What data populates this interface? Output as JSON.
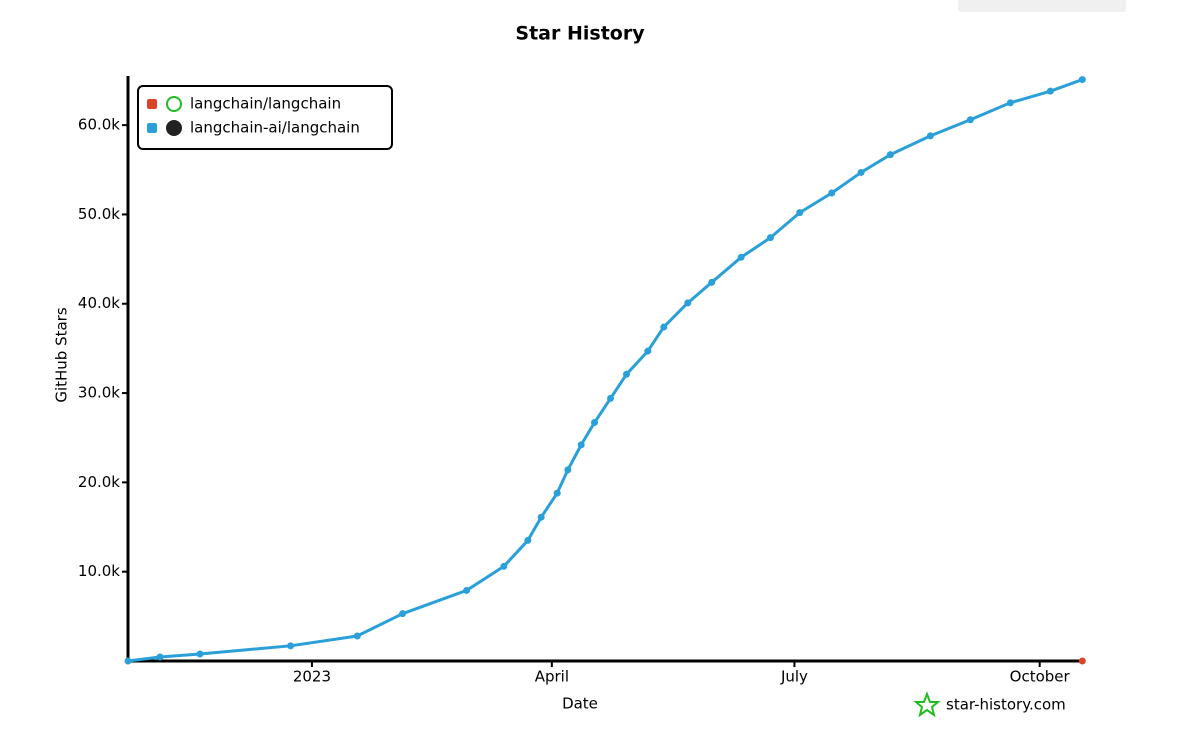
{
  "chart_data": {
    "type": "line",
    "title": "Star History",
    "xlabel": "Date",
    "ylabel": "GitHub Stars",
    "xlim": [
      -69,
      290
    ],
    "xticks": [
      {
        "value": 0,
        "label": "2023"
      },
      {
        "value": 90,
        "label": "April"
      },
      {
        "value": 181,
        "label": "July"
      },
      {
        "value": 273,
        "label": "October"
      }
    ],
    "ylim": [
      0,
      65500
    ],
    "yticks": [
      {
        "value": 10000,
        "label": "10.0k"
      },
      {
        "value": 20000,
        "label": "20.0k"
      },
      {
        "value": 30000,
        "label": "30.0k"
      },
      {
        "value": 40000,
        "label": "40.0k"
      },
      {
        "value": 50000,
        "label": "50.0k"
      },
      {
        "value": 60000,
        "label": "60.0k"
      }
    ],
    "legend": "top-left",
    "watermark": "star-history.com",
    "series": [
      {
        "name": "langchain/langchain",
        "color": "#dd4528",
        "x": [
          289
        ],
        "values": [
          0
        ]
      },
      {
        "name": "langchain-ai/langchain",
        "color": "#2a9fd8",
        "x": [
          -69,
          -57,
          -42,
          -8,
          17,
          34,
          58,
          72,
          81,
          86,
          92,
          96,
          101,
          106,
          112,
          118,
          126,
          132,
          141,
          150,
          161,
          172,
          183,
          195,
          206,
          217,
          232,
          247,
          262,
          277,
          289
        ],
        "values": [
          0,
          450,
          780,
          1700,
          2800,
          5300,
          7900,
          10600,
          13500,
          16100,
          18800,
          21400,
          24200,
          26700,
          29400,
          32100,
          34700,
          37400,
          40100,
          42400,
          45200,
          47400,
          50200,
          52400,
          54700,
          56700,
          58800,
          60600,
          62500,
          63800,
          65100
        ]
      }
    ]
  }
}
